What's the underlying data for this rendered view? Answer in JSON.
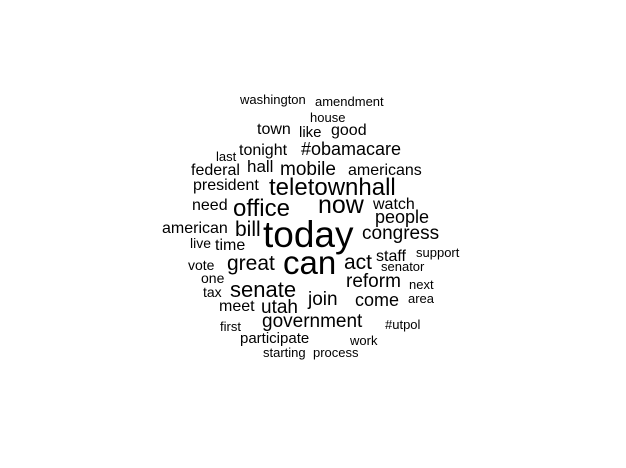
{
  "chart_data": {
    "type": "wordcloud",
    "words": [
      {
        "text": "washington",
        "weight": 1
      },
      {
        "text": "amendment",
        "weight": 1
      },
      {
        "text": "house",
        "weight": 1
      },
      {
        "text": "town",
        "weight": 2
      },
      {
        "text": "like",
        "weight": 2
      },
      {
        "text": "good",
        "weight": 2
      },
      {
        "text": "last",
        "weight": 1
      },
      {
        "text": "tonight",
        "weight": 2
      },
      {
        "text": "#obamacare",
        "weight": 3
      },
      {
        "text": "federal",
        "weight": 2
      },
      {
        "text": "hall",
        "weight": 2
      },
      {
        "text": "mobile",
        "weight": 3
      },
      {
        "text": "americans",
        "weight": 2
      },
      {
        "text": "president",
        "weight": 2
      },
      {
        "text": "teletownhall",
        "weight": 5
      },
      {
        "text": "need",
        "weight": 2
      },
      {
        "text": "office",
        "weight": 4
      },
      {
        "text": "now",
        "weight": 5
      },
      {
        "text": "watch",
        "weight": 2
      },
      {
        "text": "people",
        "weight": 3
      },
      {
        "text": "american",
        "weight": 2
      },
      {
        "text": "bill",
        "weight": 3
      },
      {
        "text": "today",
        "weight": 8
      },
      {
        "text": "congress",
        "weight": 3
      },
      {
        "text": "live",
        "weight": 1
      },
      {
        "text": "time",
        "weight": 2
      },
      {
        "text": "support",
        "weight": 1
      },
      {
        "text": "staff",
        "weight": 2
      },
      {
        "text": "vote",
        "weight": 1
      },
      {
        "text": "great",
        "weight": 3
      },
      {
        "text": "can",
        "weight": 7
      },
      {
        "text": "act",
        "weight": 3
      },
      {
        "text": "senator",
        "weight": 1
      },
      {
        "text": "one",
        "weight": 1
      },
      {
        "text": "reform",
        "weight": 3
      },
      {
        "text": "next",
        "weight": 1
      },
      {
        "text": "tax",
        "weight": 1
      },
      {
        "text": "senate",
        "weight": 4
      },
      {
        "text": "join",
        "weight": 3
      },
      {
        "text": "come",
        "weight": 3
      },
      {
        "text": "area",
        "weight": 1
      },
      {
        "text": "meet",
        "weight": 2
      },
      {
        "text": "utah",
        "weight": 3
      },
      {
        "text": "government",
        "weight": 3
      },
      {
        "text": "first",
        "weight": 1
      },
      {
        "text": "#utpol",
        "weight": 1
      },
      {
        "text": "participate",
        "weight": 2
      },
      {
        "text": "work",
        "weight": 1
      },
      {
        "text": "starting",
        "weight": 1
      },
      {
        "text": "process",
        "weight": 1
      }
    ]
  }
}
